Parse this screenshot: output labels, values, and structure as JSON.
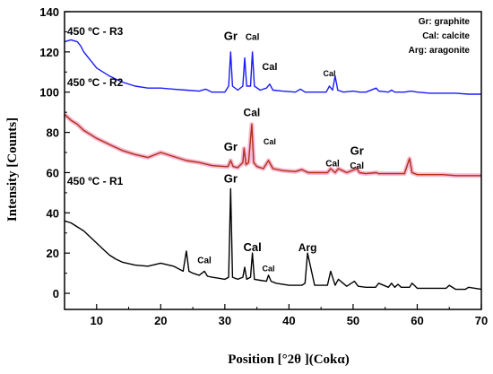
{
  "chart_data": {
    "type": "line",
    "xlabel": "Position [°2θ ](Cokα)",
    "ylabel": "Intensity [Counts]",
    "xlim": [
      5,
      70
    ],
    "ylim": [
      -8,
      140
    ],
    "xticks": [
      10,
      20,
      30,
      40,
      50,
      60,
      70
    ],
    "yticks": [
      0,
      20,
      40,
      60,
      80,
      100,
      120,
      140
    ],
    "grid": false,
    "legend_position": "top-right",
    "legend": [
      "Gr: graphite",
      "Cal: calcite",
      "Arg: aragonite"
    ],
    "series": [
      {
        "name": "450 ºC - R3",
        "color": "#1a1aff",
        "x": [
          5,
          6,
          7,
          7.5,
          8,
          9,
          10,
          12,
          14,
          16,
          18,
          20,
          22,
          24,
          26,
          27,
          28,
          30,
          30.6,
          30.9,
          31.2,
          32,
          32.8,
          33.1,
          33.4,
          34,
          34.3,
          34.6,
          35.5,
          36.5,
          37,
          37.5,
          39,
          41,
          41.8,
          42.5,
          44,
          45.8,
          46.3,
          46.8,
          47.2,
          47.6,
          48.5,
          50,
          51,
          52,
          53.6,
          54,
          55.5,
          56,
          56.5,
          58,
          59,
          60,
          62,
          64,
          66,
          68,
          70
        ],
        "y": [
          125,
          126,
          125,
          123,
          120,
          116,
          112,
          108,
          105,
          103,
          102,
          102,
          101.5,
          101,
          100.5,
          101.5,
          100,
          100,
          103,
          120,
          103,
          101,
          103,
          117,
          103,
          103,
          120,
          103,
          101,
          102,
          104,
          101,
          100.5,
          100,
          101.5,
          100,
          100,
          100,
          103,
          101,
          108,
          101,
          100,
          100.5,
          100,
          100,
          102,
          100.5,
          100,
          101,
          100,
          100,
          100.5,
          100,
          99.5,
          99.5,
          99.5,
          99,
          99
        ]
      },
      {
        "name": "450 ºC - R2",
        "color": "#b03018",
        "x": [
          5,
          6,
          7,
          8,
          9,
          10,
          12,
          14,
          16,
          18,
          20,
          22,
          24,
          26,
          28,
          30,
          30.5,
          30.9,
          31.3,
          32,
          32.8,
          33,
          33.3,
          33.7,
          34.2,
          34.5,
          35,
          36,
          36.8,
          37.5,
          39,
          41,
          42,
          43,
          45,
          46,
          46.5,
          47.2,
          47.7,
          49,
          50.6,
          51,
          52,
          53.6,
          54,
          56,
          58,
          58.8,
          59.2,
          60,
          62,
          64,
          66,
          68,
          70
        ],
        "y": [
          89,
          86,
          84,
          81,
          79,
          77,
          74,
          71,
          69,
          67.5,
          70,
          68,
          66,
          65,
          63.5,
          63,
          63,
          66,
          63,
          62.5,
          65,
          72,
          64,
          65,
          84,
          65,
          63,
          62,
          66,
          62,
          61,
          60.5,
          61.5,
          60,
          60,
          60,
          62,
          60,
          62,
          60,
          62,
          60,
          59.5,
          60,
          59.5,
          59.5,
          59.5,
          67,
          60,
          59,
          59,
          59,
          58.5,
          58.5,
          58.5
        ]
      },
      {
        "name": "450 ºC - R1",
        "color": "#000000",
        "x": [
          5,
          6,
          7,
          8,
          9,
          10,
          11,
          12,
          13,
          14,
          16,
          18,
          20,
          22,
          23.5,
          24,
          24.4,
          25,
          26,
          26.8,
          27.3,
          28,
          29,
          30,
          30.6,
          30.9,
          31.2,
          32,
          32.8,
          33.1,
          33.4,
          34,
          34.3,
          34.6,
          35.5,
          36.5,
          36.8,
          37.2,
          38,
          40,
          42,
          42.5,
          42.9,
          44,
          45.5,
          46,
          46.5,
          47.2,
          47.7,
          49,
          50.2,
          50.8,
          52,
          53.5,
          54,
          55.5,
          56,
          56.5,
          57,
          57.5,
          58.8,
          59.2,
          60,
          62,
          64.5,
          65,
          66,
          67.5,
          68,
          70
        ],
        "y": [
          36,
          35,
          33,
          31,
          28,
          25,
          22,
          19,
          17,
          15.5,
          14,
          13.5,
          15,
          13.5,
          11,
          21,
          11,
          10,
          9,
          11,
          8.5,
          8,
          7.5,
          7,
          8,
          52,
          8,
          7,
          8,
          13,
          7,
          8,
          20,
          7,
          6.5,
          6,
          9,
          6,
          5,
          4,
          4,
          5,
          20,
          4,
          4,
          4,
          11,
          4,
          7,
          3.5,
          6,
          3.5,
          3,
          3,
          5,
          3,
          5,
          3,
          4.5,
          3,
          3,
          5,
          2.5,
          2.5,
          2.5,
          4,
          2,
          2,
          3,
          2
        ]
      }
    ],
    "peak_labels": [
      {
        "text": "Gr",
        "x": 30.9,
        "y": 126,
        "size": 13
      },
      {
        "text": "Cal",
        "x": 34.3,
        "y": 126,
        "size": 10
      },
      {
        "text": "Cal",
        "x": 37,
        "y": 111,
        "size": 11
      },
      {
        "text": "Cal",
        "x": 46.3,
        "y": 108,
        "size": 9
      },
      {
        "text": "Gr",
        "x": 30.9,
        "y": 71,
        "size": 13
      },
      {
        "text": "Cal",
        "x": 34.2,
        "y": 88,
        "size": 12
      },
      {
        "text": "Cal",
        "x": 37,
        "y": 74,
        "size": 9
      },
      {
        "text": "Cal",
        "x": 46.8,
        "y": 63,
        "size": 10
      },
      {
        "text": "Gr",
        "x": 50.6,
        "y": 69,
        "size": 13
      },
      {
        "text": "Cal",
        "x": 50.6,
        "y": 62,
        "size": 10
      },
      {
        "text": "Gr",
        "x": 30.9,
        "y": 55,
        "size": 13
      },
      {
        "text": "Cal",
        "x": 26.8,
        "y": 15,
        "size": 10
      },
      {
        "text": "Cal",
        "x": 34.3,
        "y": 21,
        "size": 13
      },
      {
        "text": "Cal",
        "x": 36.8,
        "y": 11,
        "size": 9
      },
      {
        "text": "Arg",
        "x": 42.9,
        "y": 21,
        "size": 12
      }
    ]
  }
}
